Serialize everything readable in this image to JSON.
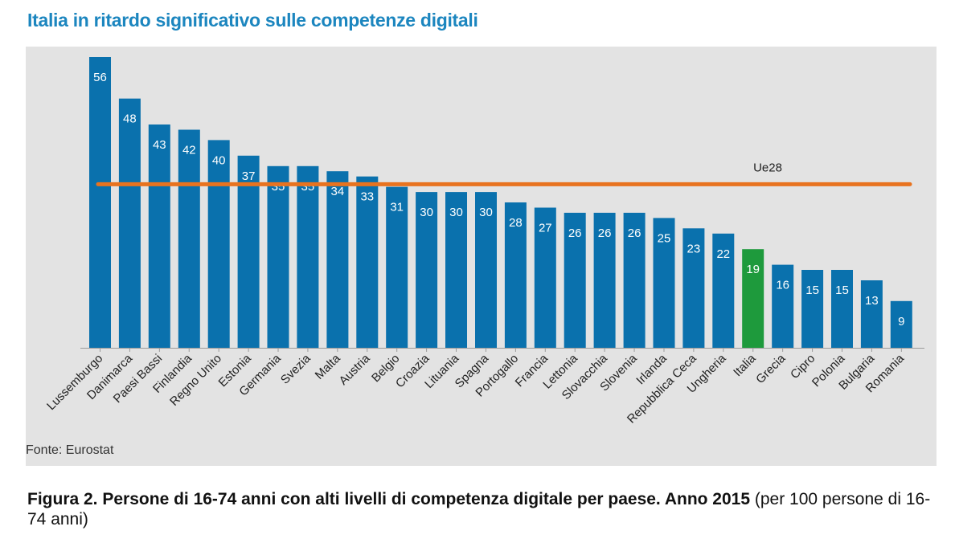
{
  "title": "Italia in ritardo significativo sulle competenze digitali",
  "source": "Fonte: Eurostat",
  "caption": {
    "label": "Figura 2.",
    "bold": "Persone di 16-74 anni con alti livelli di competenza digitale per paese. Anno 2015",
    "normal": "(per 100 persone di 16-74 anni)"
  },
  "chart_data": {
    "type": "bar",
    "categories": [
      "Lussemburgo",
      "Danimarca",
      "Paesi Bassi",
      "Finlandia",
      "Regno Unito",
      "Estonia",
      "Germania",
      "Svezia",
      "Malta",
      "Austria",
      "Belgio",
      "Croazia",
      "Lituania",
      "Spagna",
      "Portogallo",
      "Francia",
      "Lettonia",
      "Slovacchia",
      "Slovenia",
      "Irlanda",
      "Repubblica Ceca",
      "Ungheria",
      "Italia",
      "Grecia",
      "Cipro",
      "Polonia",
      "Bulgaria",
      "Romania"
    ],
    "values": [
      56,
      48,
      43,
      42,
      40,
      37,
      35,
      35,
      34,
      33,
      31,
      30,
      30,
      30,
      28,
      27,
      26,
      26,
      26,
      25,
      23,
      22,
      19,
      16,
      15,
      15,
      13,
      9
    ],
    "highlight": "Italia",
    "reference_line": {
      "label": "Ue28",
      "value": 31.5
    },
    "ylim": [
      0,
      56
    ],
    "colors": {
      "bar": "#0a71ad",
      "highlight": "#1e9a3c",
      "reference": "#e8731f",
      "background": "#e3e3e3"
    }
  }
}
